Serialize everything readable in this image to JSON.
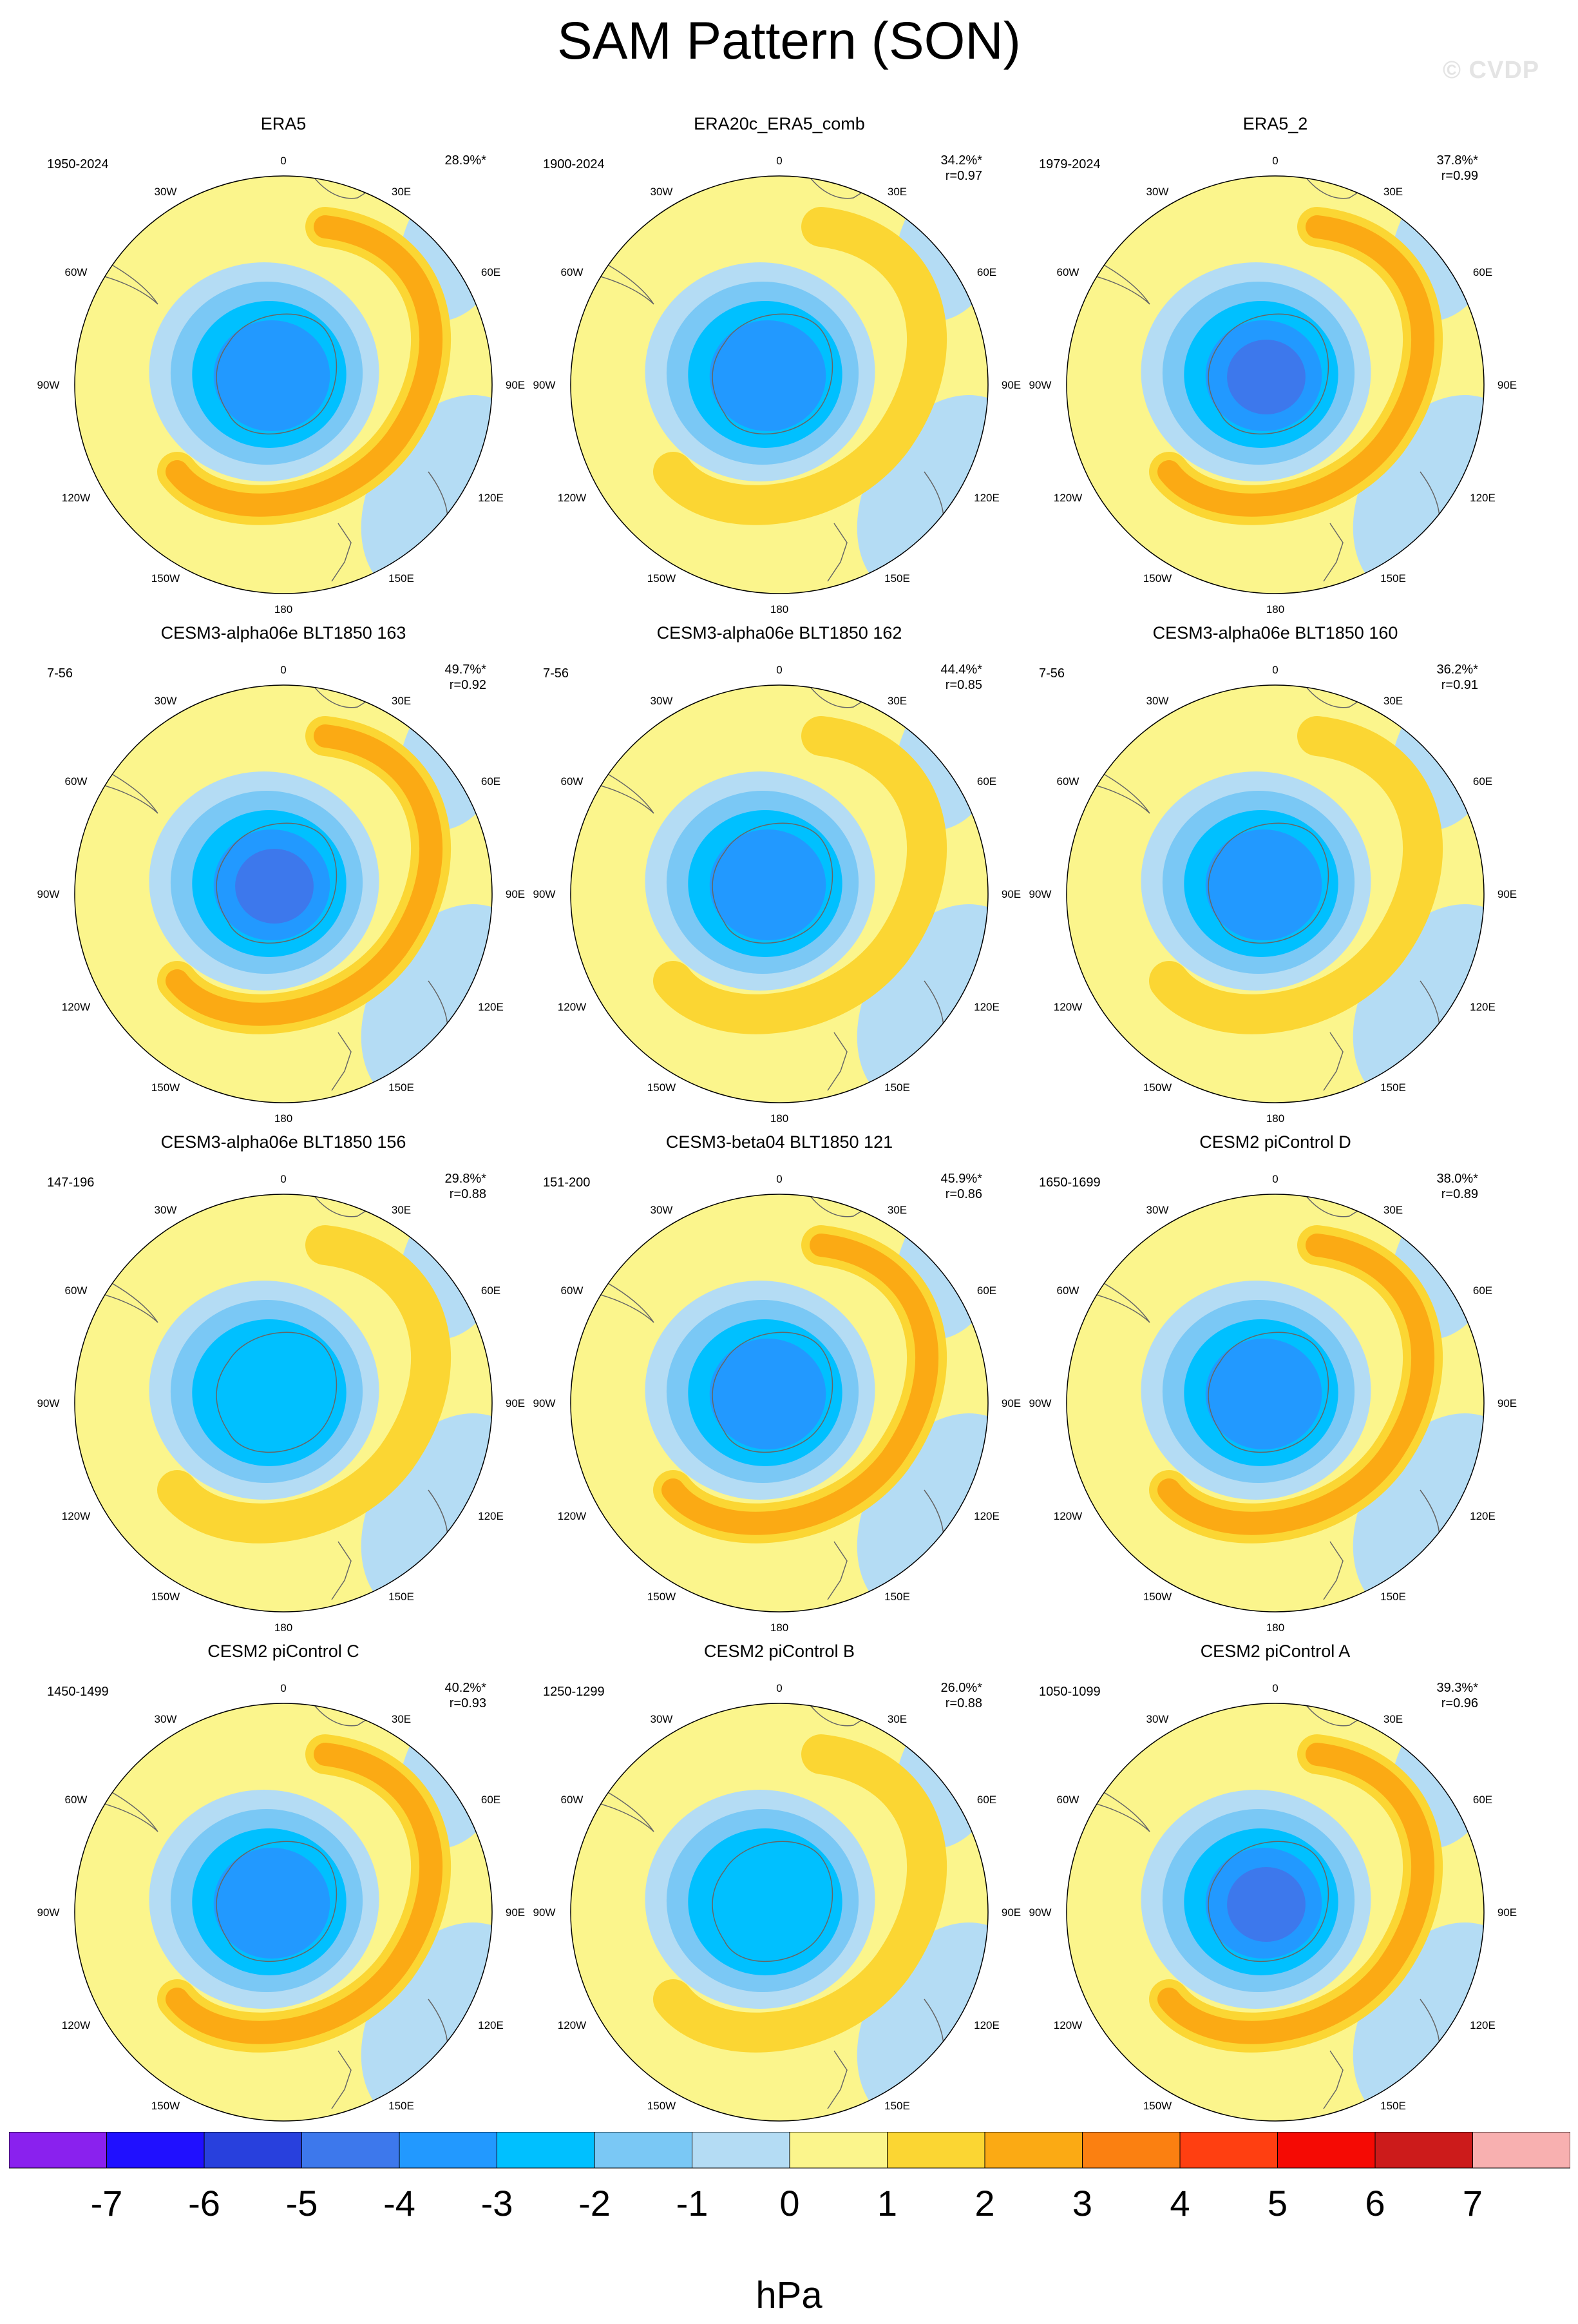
{
  "title": "SAM Pattern (SON)",
  "watermark": "© CVDP",
  "colorbar": {
    "colors": [
      "#8a21ee",
      "#2010ff",
      "#2840dd",
      "#3d78ec",
      "#2299ff",
      "#00c0ff",
      "#7ac8f5",
      "#b4dcf4",
      "#fbf58c",
      "#fbd633",
      "#fbaa14",
      "#fb8011",
      "#ff3f11",
      "#f50a04",
      "#cc1b1b",
      "#f8b0b0"
    ],
    "labels": [
      "-7",
      "-6",
      "-5",
      "-4",
      "-3",
      "-2",
      "-1",
      "0",
      "1",
      "2",
      "3",
      "4",
      "5",
      "6",
      "7"
    ],
    "unit": "hPa"
  },
  "longitude_labels": [
    "0",
    "30E",
    "60E",
    "90E",
    "120E",
    "150E",
    "180",
    "150W",
    "120W",
    "90W",
    "60W",
    "30W"
  ],
  "chart_data": [
    {
      "type": "heatmap",
      "title": "ERA5",
      "period": "1950-2024",
      "variance": "28.9%*",
      "r": "",
      "center_min": -4,
      "ring_max": 2
    },
    {
      "type": "heatmap",
      "title": "ERA20c_ERA5_comb",
      "period": "1900-2024",
      "variance": "34.2%*",
      "r": "r=0.97",
      "center_min": -4,
      "ring_max": 1
    },
    {
      "type": "heatmap",
      "title": "ERA5_2",
      "period": "1979-2024",
      "variance": "37.8%*",
      "r": "r=0.99",
      "center_min": -5,
      "ring_max": 2
    },
    {
      "type": "heatmap",
      "title": "CESM3-alpha06e BLT1850 163",
      "period": "7-56",
      "variance": "49.7%*",
      "r": "r=0.92",
      "center_min": -5,
      "ring_max": 2
    },
    {
      "type": "heatmap",
      "title": "CESM3-alpha06e BLT1850 162",
      "period": "7-56",
      "variance": "44.4%*",
      "r": "r=0.85",
      "center_min": -4,
      "ring_max": 1
    },
    {
      "type": "heatmap",
      "title": "CESM3-alpha06e BLT1850 160",
      "period": "7-56",
      "variance": "36.2%*",
      "r": "r=0.91",
      "center_min": -4,
      "ring_max": 1
    },
    {
      "type": "heatmap",
      "title": "CESM3-alpha06e BLT1850 156",
      "period": "147-196",
      "variance": "29.8%*",
      "r": "r=0.88",
      "center_min": -3,
      "ring_max": 1
    },
    {
      "type": "heatmap",
      "title": "CESM3-beta04 BLT1850 121",
      "period": "151-200",
      "variance": "45.9%*",
      "r": "r=0.86",
      "center_min": -4,
      "ring_max": 2
    },
    {
      "type": "heatmap",
      "title": "CESM2 piControl D",
      "period": "1650-1699",
      "variance": "38.0%*",
      "r": "r=0.89",
      "center_min": -4,
      "ring_max": 2
    },
    {
      "type": "heatmap",
      "title": "CESM2 piControl C",
      "period": "1450-1499",
      "variance": "40.2%*",
      "r": "r=0.93",
      "center_min": -4,
      "ring_max": 2
    },
    {
      "type": "heatmap",
      "title": "CESM2 piControl B",
      "period": "1250-1299",
      "variance": "26.0%*",
      "r": "r=0.88",
      "center_min": -3,
      "ring_max": 1
    },
    {
      "type": "heatmap",
      "title": "CESM2 piControl A",
      "period": "1050-1099",
      "variance": "39.3%*",
      "r": "r=0.96",
      "center_min": -5,
      "ring_max": 2
    }
  ]
}
